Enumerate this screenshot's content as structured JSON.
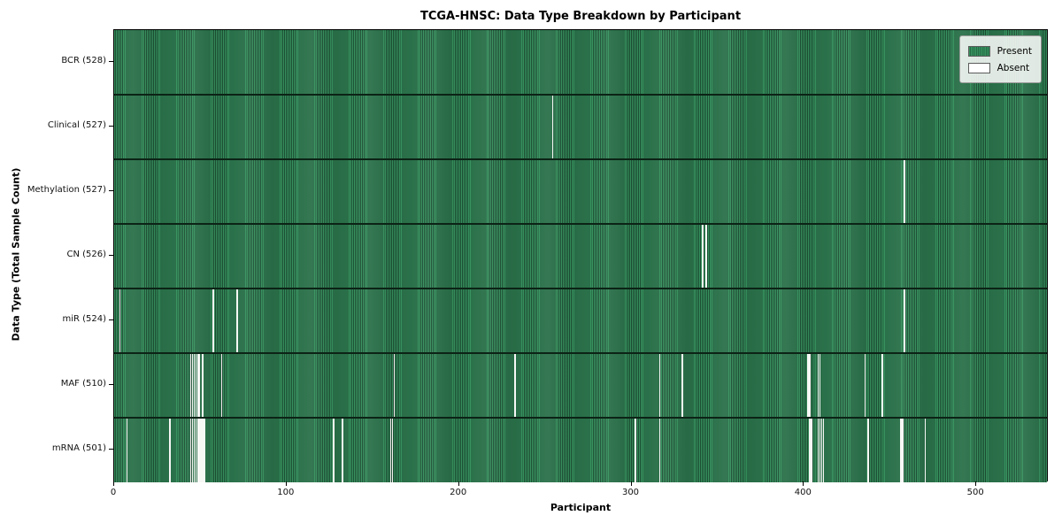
{
  "title": "TCGA-HNSC: Data Type Breakdown by Participant",
  "x_axis": {
    "label": "Participant",
    "ticks": [
      0,
      100,
      200,
      300,
      400,
      500
    ]
  },
  "y_axis": {
    "label": "Data Type (Total Sample Count)"
  },
  "legend": {
    "items": [
      {
        "label": "Present",
        "color": "#2e8b57"
      },
      {
        "label": "Absent",
        "color": "#ffffff"
      }
    ]
  },
  "colors": {
    "present_green": "#2e8b57",
    "present_stripe_light": "#37935f",
    "present_stripe_dark": "#1d4e34",
    "absent_white": "#f7f7f5",
    "axis_black": "#000000",
    "legend_background": "#f4f6f4"
  },
  "chart_data": {
    "type": "heatmap",
    "title": "TCGA-HNSC: Data Type Breakdown by Participant",
    "xlabel": "Participant",
    "ylabel": "Data Type (Total Sample Count)",
    "x_axis_range": [
      0,
      542
    ],
    "total_participants": 528,
    "grid": false,
    "legend_position": "upper right",
    "value_encoding": {
      "present": "green cell",
      "absent": "white cell"
    },
    "rows": [
      {
        "data_type": "BCR",
        "label": "BCR (528)",
        "present_count": 528,
        "absent_count": 0,
        "absent_participants": []
      },
      {
        "data_type": "Clinical",
        "label": "Clinical (527)",
        "present_count": 527,
        "absent_count": 1,
        "absent_participants": [
          254
        ]
      },
      {
        "data_type": "Methylation",
        "label": "Methylation (527)",
        "present_count": 527,
        "absent_count": 1,
        "absent_participants": [
          458
        ]
      },
      {
        "data_type": "CN",
        "label": "CN (526)",
        "present_count": 526,
        "absent_count": 2,
        "absent_participants": [
          341,
          343
        ]
      },
      {
        "data_type": "miR",
        "label": "miR (524)",
        "present_count": 524,
        "absent_count": 4,
        "absent_participants": [
          3,
          57,
          71,
          458
        ]
      },
      {
        "data_type": "MAF",
        "label": "MAF (510)",
        "present_count": 510,
        "absent_count": 18,
        "absent_participants": [
          44,
          45,
          46,
          47,
          48,
          49,
          51,
          62,
          162,
          232,
          316,
          329,
          402,
          403,
          408,
          409,
          435,
          445
        ]
      },
      {
        "data_type": "mRNA",
        "label": "mRNA (501)",
        "present_count": 501,
        "absent_count": 27,
        "absent_participants": [
          7,
          32,
          44,
          45,
          46,
          47,
          48,
          49,
          50,
          51,
          52,
          127,
          132,
          160,
          161,
          302,
          316,
          403,
          404,
          408,
          409,
          410,
          411,
          437,
          456,
          457,
          470
        ]
      }
    ]
  }
}
